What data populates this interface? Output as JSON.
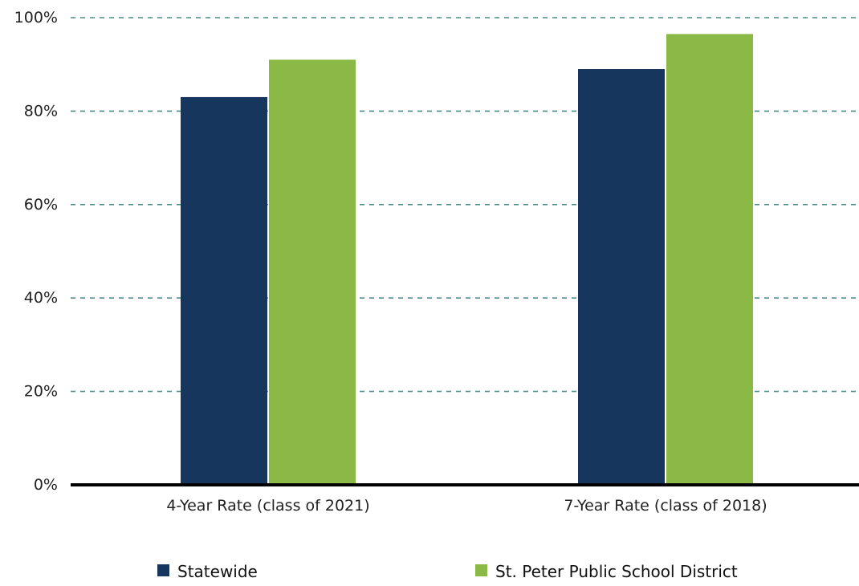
{
  "chart_data": {
    "type": "bar",
    "categories": [
      "4-Year Rate (class of 2021)",
      "7-Year Rate (class of 2018)"
    ],
    "series": [
      {
        "name": "Statewide",
        "values": [
          83,
          89
        ],
        "color": "#17365d"
      },
      {
        "name": "St. Peter Public School District",
        "values": [
          91,
          96.5
        ],
        "color": "#8aba45"
      }
    ],
    "ylim": [
      0,
      100
    ],
    "yticks": [
      0,
      20,
      40,
      60,
      80,
      100
    ],
    "ytick_labels": [
      "0%",
      "20%",
      "40%",
      "60%",
      "80%",
      "100%"
    ],
    "grid": true,
    "grid_color": "#4a8a8a",
    "axis_color": "#000000",
    "legend_position": "bottom"
  }
}
